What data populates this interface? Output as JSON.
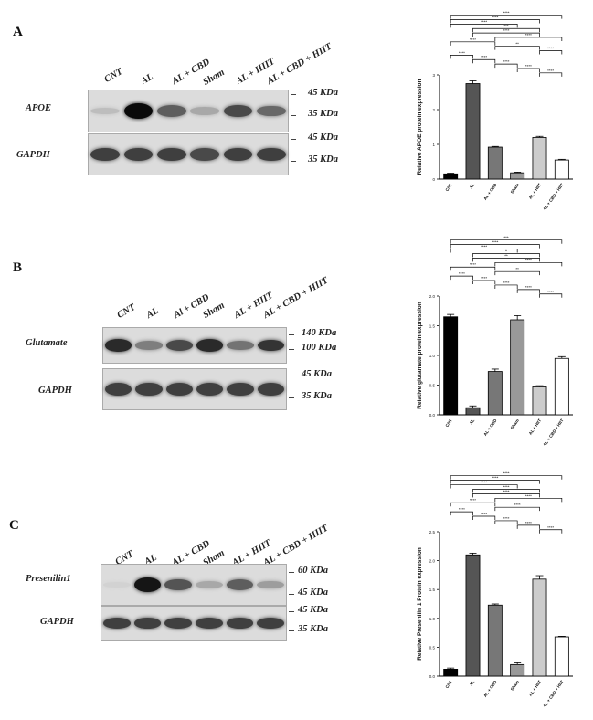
{
  "panels": [
    {
      "letter": "A",
      "lanes": [
        "CNT",
        "AL",
        "AL + CBD",
        "Sham",
        "AL + HIIT",
        "AL + CBD + HIIT"
      ],
      "blots": [
        {
          "label": "APOE",
          "markers": [
            "45 KDa",
            "35 KDa"
          ],
          "intensity": [
            0.15,
            1.0,
            0.6,
            0.25,
            0.7,
            0.55
          ]
        },
        {
          "label": "GAPDH",
          "markers": [
            "45 KDa",
            "35 KDa"
          ],
          "intensity": [
            0.75,
            0.75,
            0.75,
            0.7,
            0.75,
            0.75
          ]
        }
      ]
    },
    {
      "letter": "B",
      "lanes": [
        "CNT",
        "AL",
        "Al + CBD",
        "Sham",
        "AL + HIIT",
        "AL + CBD + HIIT"
      ],
      "blots": [
        {
          "label": "Glutamate",
          "markers": [
            "140 KDa",
            "100 KDa"
          ],
          "intensity": [
            0.85,
            0.45,
            0.7,
            0.85,
            0.5,
            0.8
          ]
        },
        {
          "label": "GAPDH",
          "markers": [
            "45 KDa",
            "35 KDa"
          ],
          "intensity": [
            0.75,
            0.75,
            0.75,
            0.75,
            0.75,
            0.75
          ]
        }
      ]
    },
    {
      "letter": "C",
      "lanes": [
        "CNT",
        "AL",
        "AL + CBD",
        "Sham",
        "AL + HIIT",
        "AL + CBD + HIIT"
      ],
      "blots": [
        {
          "label": "Presenilin1",
          "markers": [
            "60 KDa",
            "45 KDa"
          ],
          "intensity": [
            0.05,
            0.95,
            0.65,
            0.25,
            0.6,
            0.3
          ]
        },
        {
          "label": "GAPDH",
          "markers": [
            "45 KDa",
            "35 KDa"
          ],
          "intensity": [
            0.75,
            0.75,
            0.75,
            0.75,
            0.75,
            0.75
          ]
        }
      ]
    }
  ],
  "chart_data": [
    {
      "type": "bar",
      "ylabel": "Relative APOE protein expression",
      "categories": [
        "CNT",
        "AL",
        "AL + CBD",
        "Sham",
        "AL + HIIT",
        "AL + CBD + HIIT"
      ],
      "values": [
        0.15,
        2.75,
        0.92,
        0.18,
        1.2,
        0.55
      ],
      "errors": [
        0.02,
        0.08,
        0.02,
        0.02,
        0.03,
        0.02
      ],
      "ylim": [
        0,
        3
      ],
      "yticks": [
        "0",
        "1",
        "2",
        "3"
      ],
      "colors": [
        "#000000",
        "#555555",
        "#777777",
        "#999999",
        "#cccccc",
        "#ffffff"
      ],
      "brackets": [
        {
          "from": 0,
          "to": 5,
          "label": "****"
        },
        {
          "from": 0,
          "to": 4,
          "label": "****"
        },
        {
          "from": 0,
          "to": 3,
          "label": "****"
        },
        {
          "from": 1,
          "to": 4,
          "label": "***"
        },
        {
          "from": 1,
          "to": 4,
          "label": "****"
        },
        {
          "from": 2,
          "to": 5,
          "label": "****"
        },
        {
          "from": 0,
          "to": 2,
          "label": "****"
        },
        {
          "from": 2,
          "to": 4,
          "label": "**"
        },
        {
          "from": 4,
          "to": 5,
          "label": "****"
        },
        {
          "from": 0,
          "to": 1,
          "label": "****"
        },
        {
          "from": 1,
          "to": 2,
          "label": "****"
        },
        {
          "from": 2,
          "to": 3,
          "label": "****"
        },
        {
          "from": 3,
          "to": 4,
          "label": "****"
        },
        {
          "from": 4,
          "to": 5,
          "label": "****"
        }
      ]
    },
    {
      "type": "bar",
      "ylabel": "Relative glutamate protein expression",
      "categories": [
        "CNT",
        "AL",
        "AL + CBD",
        "Sham",
        "AL + HIIT",
        "AL + CBD + HIIT"
      ],
      "values": [
        1.65,
        0.12,
        0.73,
        1.6,
        0.47,
        0.95
      ],
      "errors": [
        0.04,
        0.03,
        0.04,
        0.07,
        0.02,
        0.03
      ],
      "ylim": [
        0,
        2
      ],
      "yticks": [
        "0.0",
        "0.5",
        "1.0",
        "1.5",
        "2.0"
      ],
      "colors": [
        "#000000",
        "#555555",
        "#777777",
        "#999999",
        "#cccccc",
        "#ffffff"
      ],
      "brackets": [
        {
          "from": 0,
          "to": 5,
          "label": "***"
        },
        {
          "from": 0,
          "to": 4,
          "label": "****"
        },
        {
          "from": 0,
          "to": 3,
          "label": "****"
        },
        {
          "from": 1,
          "to": 4,
          "label": "*"
        },
        {
          "from": 1,
          "to": 4,
          "label": "**"
        },
        {
          "from": 2,
          "to": 5,
          "label": "****"
        },
        {
          "from": 0,
          "to": 2,
          "label": "****"
        },
        {
          "from": 2,
          "to": 4,
          "label": "**"
        },
        {
          "from": 0,
          "to": 1,
          "label": "****"
        },
        {
          "from": 1,
          "to": 2,
          "label": "****"
        },
        {
          "from": 2,
          "to": 3,
          "label": "****"
        },
        {
          "from": 3,
          "to": 4,
          "label": "****"
        },
        {
          "from": 4,
          "to": 5,
          "label": "****"
        }
      ]
    },
    {
      "type": "bar",
      "ylabel": "Relative Presenilin 1 Protein expression",
      "categories": [
        "CNT",
        "AL",
        "AL + CBD",
        "Sham",
        "AL + HIIT",
        "AL + CBD + HIIT"
      ],
      "values": [
        0.12,
        2.1,
        1.23,
        0.2,
        1.68,
        0.68
      ],
      "errors": [
        0.02,
        0.03,
        0.02,
        0.03,
        0.06,
        0.01
      ],
      "ylim": [
        0,
        2.5
      ],
      "yticks": [
        "0.0",
        "0.5",
        "1.0",
        "1.5",
        "2.0",
        "2.5"
      ],
      "colors": [
        "#000000",
        "#555555",
        "#777777",
        "#999999",
        "#cccccc",
        "#ffffff"
      ],
      "brackets": [
        {
          "from": 0,
          "to": 5,
          "label": "****"
        },
        {
          "from": 0,
          "to": 4,
          "label": "****"
        },
        {
          "from": 0,
          "to": 3,
          "label": "****"
        },
        {
          "from": 1,
          "to": 4,
          "label": "****"
        },
        {
          "from": 1,
          "to": 4,
          "label": "****"
        },
        {
          "from": 2,
          "to": 5,
          "label": "****"
        },
        {
          "from": 0,
          "to": 2,
          "label": "****"
        },
        {
          "from": 2,
          "to": 4,
          "label": "****"
        },
        {
          "from": 0,
          "to": 1,
          "label": "****"
        },
        {
          "from": 1,
          "to": 2,
          "label": "****"
        },
        {
          "from": 2,
          "to": 3,
          "label": "****"
        },
        {
          "from": 3,
          "to": 4,
          "label": "****"
        },
        {
          "from": 4,
          "to": 5,
          "label": "****"
        }
      ]
    }
  ]
}
